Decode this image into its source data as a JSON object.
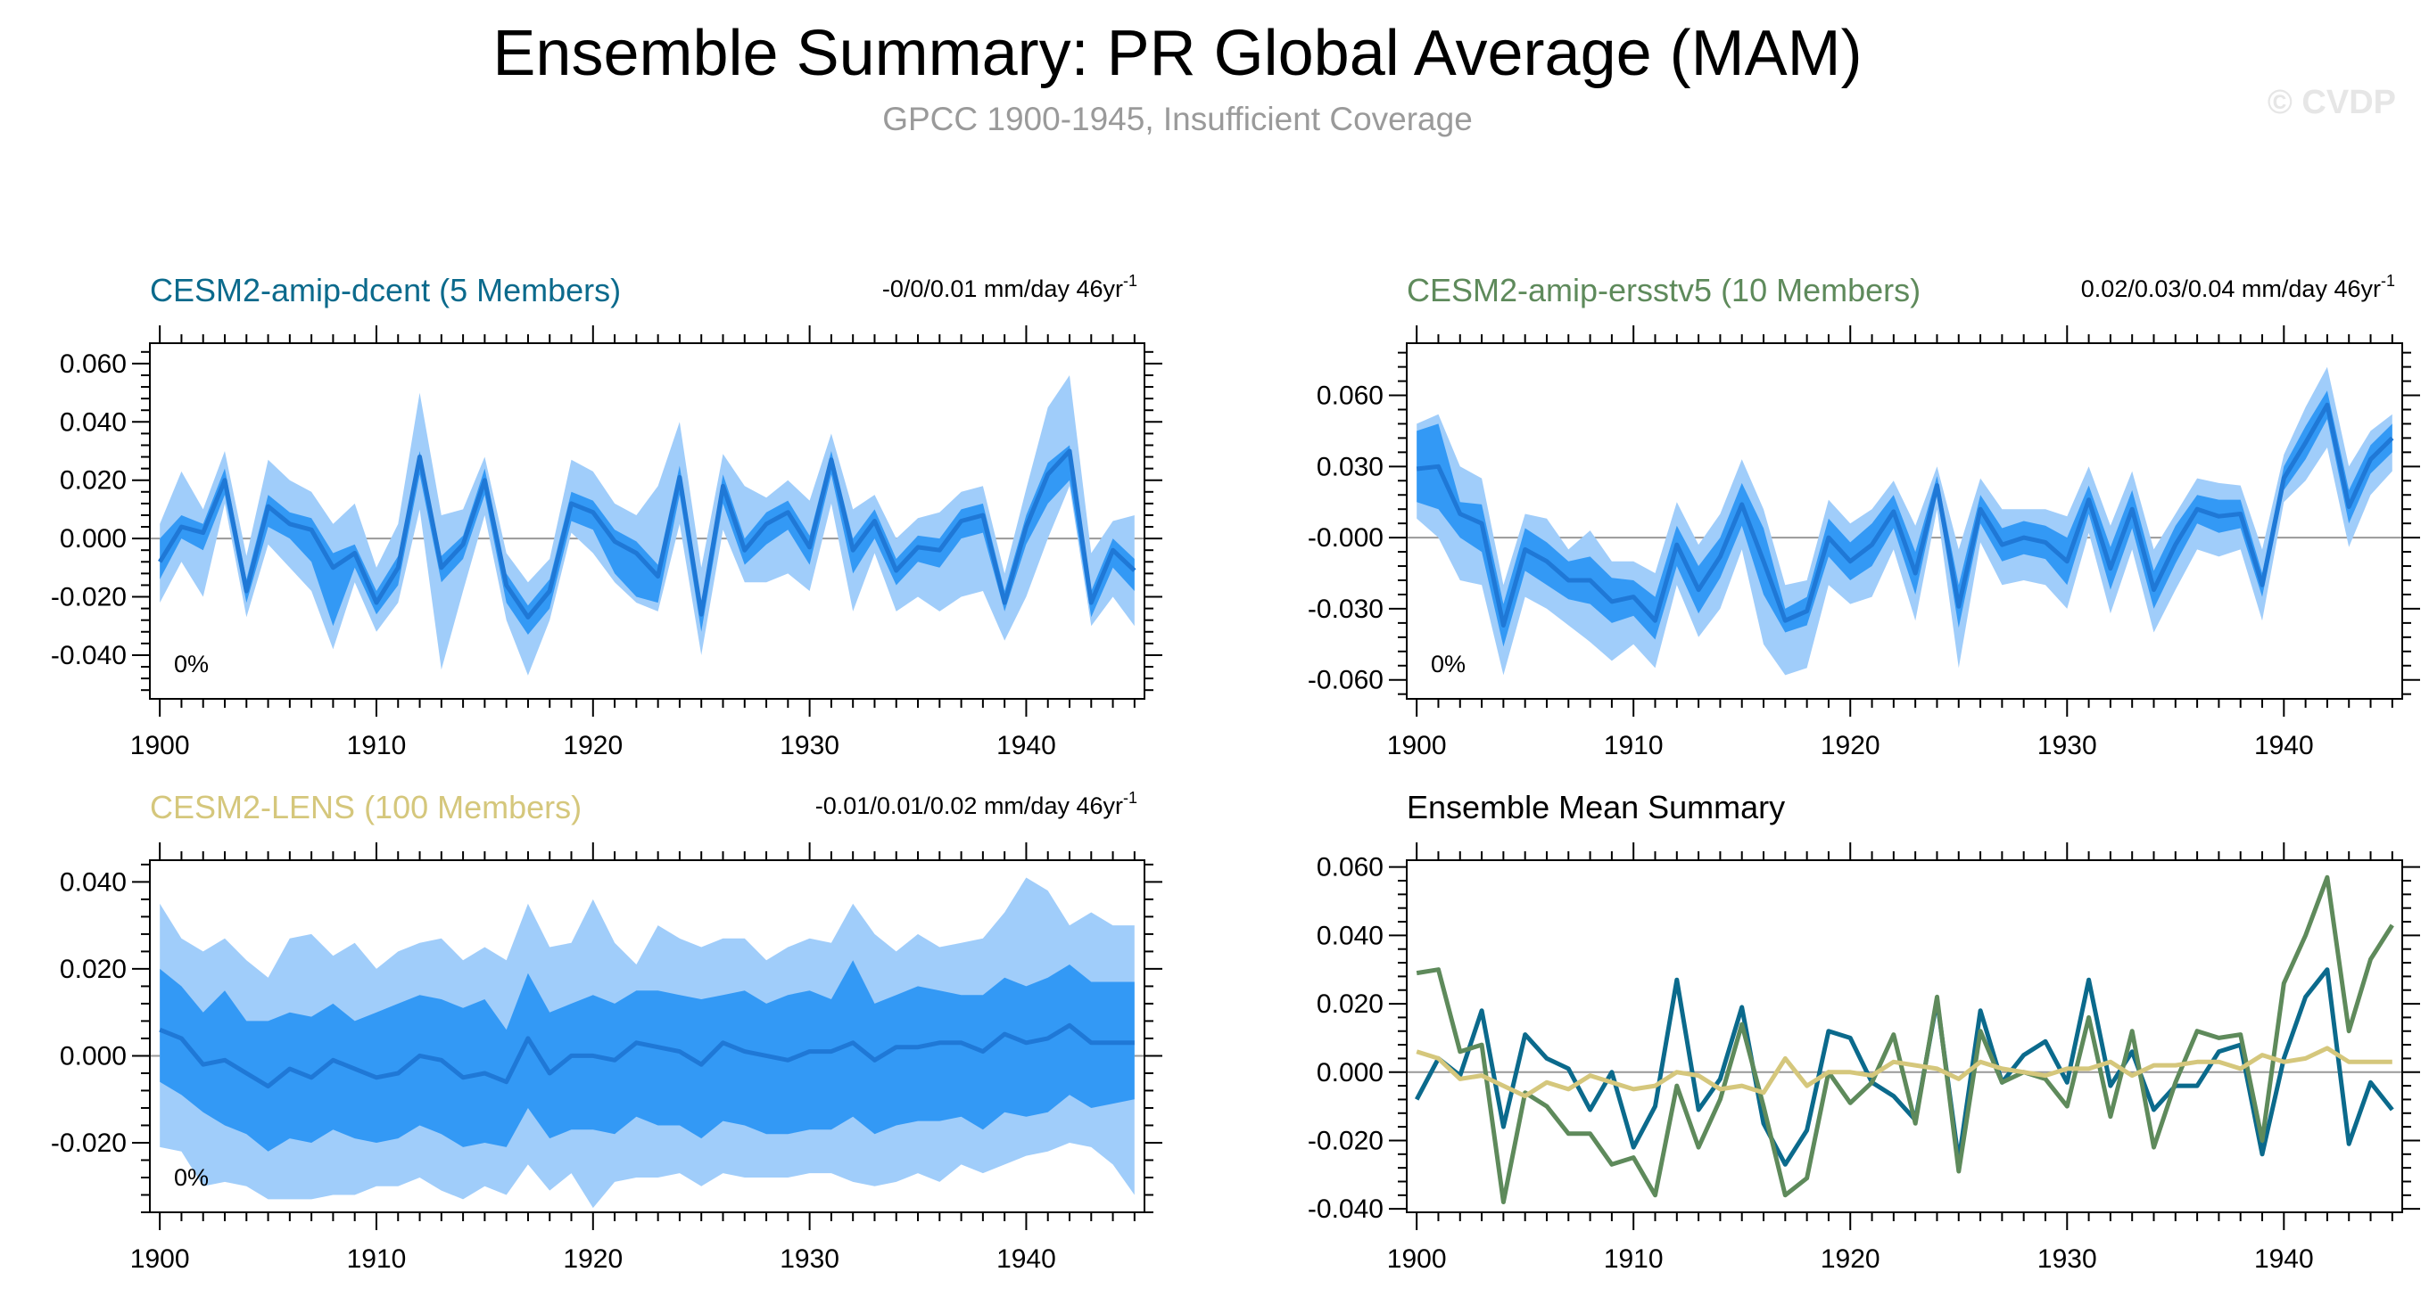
{
  "title": "Ensemble Summary: PR Global Average (MAM)",
  "subtitle": "GPCC 1900-1945, Insufficient Coverage",
  "watermark": "© CVDP",
  "colors": {
    "band_outer": "#a0cdfa",
    "band_inner": "#3399f5",
    "median_line": "#1f78d6",
    "zero_line": "#999999",
    "title_text": "#000000",
    "subtitle_text": "#9a9a9a",
    "watermark_text": "#e6e6e6"
  },
  "chart_data": [
    {
      "type": "area",
      "title": "CESM2-amip-dcent (5 Members)",
      "title_color": "#0b6a8c",
      "trend": "-0/0/0.01 mm/day 46yr",
      "trend_exp": "-1",
      "percent_label": "0%",
      "xlim": [
        1900,
        1945
      ],
      "ylim": [
        -0.055,
        0.067
      ],
      "x_ticks": [
        1900,
        1910,
        1920,
        1930,
        1940
      ],
      "x_tick_labels": [
        "1900",
        "1910",
        "1920",
        "1930",
        "1940"
      ],
      "y_ticks": [
        -0.04,
        -0.02,
        0,
        0.02,
        0.04,
        0.06
      ],
      "y_tick_labels": [
        "-0.040",
        "-0.020",
        "0.000",
        "0.020",
        "0.040",
        "0.060"
      ],
      "x": [
        1900,
        1901,
        1902,
        1903,
        1904,
        1905,
        1906,
        1907,
        1908,
        1909,
        1910,
        1911,
        1912,
        1913,
        1914,
        1915,
        1916,
        1917,
        1918,
        1919,
        1920,
        1921,
        1922,
        1923,
        1924,
        1925,
        1926,
        1927,
        1928,
        1929,
        1930,
        1931,
        1932,
        1933,
        1934,
        1935,
        1936,
        1937,
        1938,
        1939,
        1940,
        1941,
        1942,
        1943,
        1944,
        1945
      ],
      "median": [
        -0.008,
        0.004,
        0.002,
        0.02,
        -0.018,
        0.011,
        0.005,
        0.003,
        -0.01,
        -0.005,
        -0.022,
        -0.01,
        0.028,
        -0.01,
        -0.002,
        0.02,
        -0.016,
        -0.027,
        -0.018,
        0.012,
        0.009,
        -0.001,
        -0.005,
        -0.013,
        0.021,
        -0.026,
        0.018,
        -0.004,
        0.005,
        0.009,
        -0.003,
        0.027,
        -0.004,
        0.006,
        -0.011,
        -0.003,
        -0.004,
        0.006,
        0.008,
        -0.022,
        0.004,
        0.022,
        0.03,
        -0.022,
        -0.004,
        -0.011
      ],
      "inner_upper": [
        0,
        0.008,
        0.005,
        0.024,
        -0.014,
        0.015,
        0.009,
        0.007,
        -0.005,
        -0.002,
        -0.018,
        -0.006,
        0.03,
        -0.006,
        0.001,
        0.024,
        -0.012,
        -0.023,
        -0.014,
        0.016,
        0.013,
        0.003,
        -0.001,
        -0.009,
        0.025,
        -0.022,
        0.022,
        0,
        0.009,
        0.013,
        0.001,
        0.03,
        0,
        0.01,
        -0.007,
        0.001,
        0,
        0.01,
        0.012,
        -0.018,
        0.008,
        0.026,
        0.032,
        -0.018,
        0,
        -0.007
      ],
      "inner_lower": [
        -0.014,
        0,
        -0.004,
        0.015,
        -0.022,
        0.004,
        0,
        -0.008,
        -0.03,
        -0.01,
        -0.026,
        -0.016,
        0.022,
        -0.015,
        -0.007,
        0.015,
        -0.022,
        -0.033,
        -0.024,
        0.006,
        0.003,
        -0.012,
        -0.02,
        -0.022,
        0.015,
        -0.032,
        0.012,
        -0.009,
        -0.002,
        0.003,
        -0.009,
        0.022,
        -0.012,
        0,
        -0.016,
        -0.008,
        -0.01,
        0,
        0.002,
        -0.025,
        -0.002,
        0.012,
        0.02,
        -0.027,
        -0.01,
        -0.018
      ],
      "outer_upper": [
        0.005,
        0.023,
        0.01,
        0.03,
        -0.006,
        0.027,
        0.02,
        0.016,
        0.005,
        0.012,
        -0.01,
        0.005,
        0.05,
        0.008,
        0.01,
        0.028,
        -0.005,
        -0.015,
        -0.007,
        0.027,
        0.023,
        0.012,
        0.008,
        0.018,
        0.04,
        -0.01,
        0.029,
        0.018,
        0.014,
        0.02,
        0.013,
        0.036,
        0.01,
        0.015,
        0,
        0.007,
        0.009,
        0.016,
        0.018,
        -0.012,
        0.017,
        0.045,
        0.056,
        -0.005,
        0.006,
        0.008
      ],
      "outer_lower": [
        -0.022,
        -0.008,
        -0.02,
        0.012,
        -0.027,
        -0.002,
        -0.01,
        -0.018,
        -0.038,
        -0.015,
        -0.032,
        -0.022,
        0.01,
        -0.045,
        -0.018,
        0.008,
        -0.028,
        -0.047,
        -0.028,
        0.002,
        -0.005,
        -0.015,
        -0.022,
        -0.025,
        0.005,
        -0.04,
        0.003,
        -0.015,
        -0.015,
        -0.012,
        -0.018,
        0.012,
        -0.025,
        -0.005,
        -0.025,
        -0.02,
        -0.025,
        -0.02,
        -0.018,
        -0.035,
        -0.02,
        0,
        0.018,
        -0.03,
        -0.02,
        -0.03
      ]
    },
    {
      "type": "area",
      "title": "CESM2-amip-ersstv5 (10 Members)",
      "title_color": "#5e8a5b",
      "trend": "0.02/0.03/0.04 mm/day 46yr",
      "trend_exp": "-1",
      "percent_label": "0%",
      "xlim": [
        1900,
        1945
      ],
      "ylim": [
        -0.068,
        0.082
      ],
      "x_ticks": [
        1900,
        1910,
        1920,
        1930,
        1940
      ],
      "x_tick_labels": [
        "1900",
        "1910",
        "1920",
        "1930",
        "1940"
      ],
      "y_ticks": [
        -0.06,
        -0.03,
        0,
        0.03,
        0.06
      ],
      "y_tick_labels": [
        "-0.060",
        "-0.030",
        "-0.000",
        "0.030",
        "0.060"
      ],
      "x": [
        1900,
        1901,
        1902,
        1903,
        1904,
        1905,
        1906,
        1907,
        1908,
        1909,
        1910,
        1911,
        1912,
        1913,
        1914,
        1915,
        1916,
        1917,
        1918,
        1919,
        1920,
        1921,
        1922,
        1923,
        1924,
        1925,
        1926,
        1927,
        1928,
        1929,
        1930,
        1931,
        1932,
        1933,
        1934,
        1935,
        1936,
        1937,
        1938,
        1939,
        1940,
        1941,
        1942,
        1943,
        1944,
        1945
      ],
      "median": [
        0.029,
        0.03,
        0.01,
        0.006,
        -0.037,
        -0.005,
        -0.01,
        -0.018,
        -0.018,
        -0.027,
        -0.025,
        -0.035,
        -0.003,
        -0.022,
        -0.008,
        0.014,
        -0.01,
        -0.035,
        -0.031,
        0,
        -0.01,
        -0.003,
        0.011,
        -0.015,
        0.022,
        -0.029,
        0.012,
        -0.003,
        0,
        -0.002,
        -0.01,
        0.016,
        -0.013,
        0.012,
        -0.022,
        -0.003,
        0.012,
        0.009,
        0.01,
        -0.02,
        0.025,
        0.04,
        0.056,
        0.013,
        0.033,
        0.042
      ],
      "inner_upper": [
        0.045,
        0.048,
        0.015,
        0.014,
        -0.028,
        0.004,
        -0.002,
        -0.01,
        -0.008,
        -0.017,
        -0.018,
        -0.025,
        0.005,
        -0.012,
        0,
        0.023,
        0.004,
        -0.03,
        -0.025,
        0.008,
        -0.002,
        0.006,
        0.018,
        -0.006,
        0.026,
        -0.02,
        0.018,
        0.004,
        0.007,
        0.005,
        0,
        0.022,
        -0.004,
        0.02,
        -0.014,
        0.005,
        0.018,
        0.016,
        0.016,
        -0.015,
        0.03,
        0.047,
        0.062,
        0.02,
        0.039,
        0.048
      ],
      "inner_lower": [
        0.015,
        0.012,
        0,
        -0.006,
        -0.046,
        -0.014,
        -0.02,
        -0.026,
        -0.028,
        -0.036,
        -0.033,
        -0.043,
        -0.012,
        -0.032,
        -0.017,
        0.005,
        -0.024,
        -0.04,
        -0.037,
        -0.008,
        -0.018,
        -0.012,
        0.004,
        -0.024,
        0.018,
        -0.038,
        0.006,
        -0.01,
        -0.007,
        -0.009,
        -0.02,
        0.01,
        -0.022,
        0.004,
        -0.03,
        -0.011,
        0.006,
        0.002,
        0.004,
        -0.025,
        0.02,
        0.033,
        0.05,
        0.006,
        0.027,
        0.036
      ],
      "outer_upper": [
        0.048,
        0.052,
        0.03,
        0.025,
        -0.02,
        0.01,
        0.008,
        -0.005,
        0.003,
        -0.01,
        -0.01,
        -0.015,
        0.015,
        -0.003,
        0.01,
        0.033,
        0.012,
        -0.02,
        -0.018,
        0.016,
        0.006,
        0.012,
        0.024,
        0.005,
        0.03,
        -0.005,
        0.025,
        0.012,
        0.012,
        0.012,
        0.009,
        0.03,
        0.005,
        0.028,
        -0.005,
        0.01,
        0.025,
        0.023,
        0.022,
        -0.005,
        0.035,
        0.055,
        0.072,
        0.03,
        0.045,
        0.052
      ],
      "outer_lower": [
        0.008,
        0,
        -0.018,
        -0.02,
        -0.058,
        -0.025,
        -0.03,
        -0.037,
        -0.044,
        -0.052,
        -0.045,
        -0.055,
        -0.02,
        -0.042,
        -0.03,
        -0.005,
        -0.045,
        -0.058,
        -0.055,
        -0.02,
        -0.028,
        -0.025,
        -0.005,
        -0.035,
        0.012,
        -0.055,
        -0.002,
        -0.02,
        -0.018,
        -0.02,
        -0.03,
        0.002,
        -0.032,
        -0.005,
        -0.04,
        -0.022,
        -0.005,
        -0.008,
        -0.005,
        -0.035,
        0.015,
        0.024,
        0.038,
        -0.004,
        0.018,
        0.028
      ]
    },
    {
      "type": "area",
      "title": "CESM2-LENS (100 Members)",
      "title_color": "#d5c77c",
      "trend": "-0.01/0.01/0.02 mm/day 46yr",
      "trend_exp": "-1",
      "percent_label": "0%",
      "xlim": [
        1900,
        1945
      ],
      "ylim": [
        -0.036,
        0.045
      ],
      "x_ticks": [
        1900,
        1910,
        1920,
        1930,
        1940
      ],
      "x_tick_labels": [
        "1900",
        "1910",
        "1920",
        "1930",
        "1940"
      ],
      "y_ticks": [
        -0.02,
        0,
        0.02,
        0.04
      ],
      "y_tick_labels": [
        "-0.020",
        "0.000",
        "0.020",
        "0.040"
      ],
      "x": [
        1900,
        1901,
        1902,
        1903,
        1904,
        1905,
        1906,
        1907,
        1908,
        1909,
        1910,
        1911,
        1912,
        1913,
        1914,
        1915,
        1916,
        1917,
        1918,
        1919,
        1920,
        1921,
        1922,
        1923,
        1924,
        1925,
        1926,
        1927,
        1928,
        1929,
        1930,
        1931,
        1932,
        1933,
        1934,
        1935,
        1936,
        1937,
        1938,
        1939,
        1940,
        1941,
        1942,
        1943,
        1944,
        1945
      ],
      "median": [
        0.006,
        0.004,
        -0.002,
        -0.001,
        -0.004,
        -0.007,
        -0.003,
        -0.005,
        -0.001,
        -0.003,
        -0.005,
        -0.004,
        0,
        -0.001,
        -0.005,
        -0.004,
        -0.006,
        0.004,
        -0.004,
        0,
        0,
        -0.001,
        0.003,
        0.002,
        0.001,
        -0.002,
        0.003,
        0.001,
        0,
        -0.001,
        0.001,
        0.001,
        0.003,
        -0.001,
        0.002,
        0.002,
        0.003,
        0.003,
        0.001,
        0.005,
        0.003,
        0.004,
        0.007,
        0.003,
        0.003,
        0.003
      ],
      "inner_upper": [
        0.02,
        0.016,
        0.01,
        0.015,
        0.008,
        0.008,
        0.01,
        0.009,
        0.012,
        0.008,
        0.01,
        0.012,
        0.014,
        0.013,
        0.011,
        0.013,
        0.006,
        0.019,
        0.01,
        0.012,
        0.014,
        0.012,
        0.015,
        0.015,
        0.014,
        0.013,
        0.014,
        0.015,
        0.012,
        0.014,
        0.015,
        0.013,
        0.022,
        0.012,
        0.014,
        0.016,
        0.015,
        0.014,
        0.014,
        0.018,
        0.016,
        0.018,
        0.021,
        0.017,
        0.017,
        0.017
      ],
      "inner_lower": [
        -0.006,
        -0.009,
        -0.013,
        -0.016,
        -0.018,
        -0.022,
        -0.019,
        -0.02,
        -0.017,
        -0.019,
        -0.02,
        -0.019,
        -0.016,
        -0.018,
        -0.021,
        -0.02,
        -0.021,
        -0.012,
        -0.019,
        -0.017,
        -0.017,
        -0.018,
        -0.014,
        -0.016,
        -0.016,
        -0.019,
        -0.015,
        -0.016,
        -0.018,
        -0.018,
        -0.017,
        -0.017,
        -0.014,
        -0.018,
        -0.016,
        -0.015,
        -0.015,
        -0.014,
        -0.017,
        -0.013,
        -0.014,
        -0.013,
        -0.009,
        -0.012,
        -0.011,
        -0.01
      ],
      "outer_upper": [
        0.035,
        0.027,
        0.024,
        0.027,
        0.022,
        0.018,
        0.027,
        0.028,
        0.023,
        0.026,
        0.02,
        0.024,
        0.026,
        0.027,
        0.022,
        0.025,
        0.022,
        0.035,
        0.025,
        0.026,
        0.036,
        0.026,
        0.021,
        0.03,
        0.027,
        0.025,
        0.027,
        0.027,
        0.022,
        0.025,
        0.027,
        0.026,
        0.035,
        0.028,
        0.024,
        0.028,
        0.025,
        0.026,
        0.027,
        0.033,
        0.041,
        0.038,
        0.03,
        0.033,
        0.03,
        0.03
      ],
      "outer_lower": [
        -0.021,
        -0.022,
        -0.03,
        -0.029,
        -0.03,
        -0.033,
        -0.033,
        -0.033,
        -0.032,
        -0.032,
        -0.03,
        -0.03,
        -0.028,
        -0.031,
        -0.033,
        -0.03,
        -0.032,
        -0.025,
        -0.031,
        -0.027,
        -0.035,
        -0.029,
        -0.028,
        -0.028,
        -0.027,
        -0.03,
        -0.027,
        -0.028,
        -0.028,
        -0.028,
        -0.027,
        -0.027,
        -0.029,
        -0.03,
        -0.029,
        -0.027,
        -0.029,
        -0.025,
        -0.027,
        -0.025,
        -0.023,
        -0.022,
        -0.02,
        -0.021,
        -0.025,
        -0.032
      ]
    },
    {
      "type": "line",
      "title": "Ensemble Mean Summary",
      "title_color": "#000000",
      "xlim": [
        1900,
        1945
      ],
      "ylim": [
        -0.041,
        0.062
      ],
      "x_ticks": [
        1900,
        1910,
        1920,
        1930,
        1940
      ],
      "x_tick_labels": [
        "1900",
        "1910",
        "1920",
        "1930",
        "1940"
      ],
      "y_ticks": [
        -0.04,
        -0.02,
        0,
        0.02,
        0.04,
        0.06
      ],
      "y_tick_labels": [
        "-0.040",
        "-0.020",
        "0.000",
        "0.020",
        "0.040",
        "0.060"
      ],
      "x": [
        1900,
        1901,
        1902,
        1903,
        1904,
        1905,
        1906,
        1907,
        1908,
        1909,
        1910,
        1911,
        1912,
        1913,
        1914,
        1915,
        1916,
        1917,
        1918,
        1919,
        1920,
        1921,
        1922,
        1923,
        1924,
        1925,
        1926,
        1927,
        1928,
        1929,
        1930,
        1931,
        1932,
        1933,
        1934,
        1935,
        1936,
        1937,
        1938,
        1939,
        1940,
        1941,
        1942,
        1943,
        1944,
        1945
      ],
      "series": [
        {
          "name": "CESM2-amip-dcent",
          "color": "#0b6a8c",
          "values": [
            -0.008,
            0.004,
            -0.001,
            0.018,
            -0.016,
            0.011,
            0.004,
            0.001,
            -0.011,
            0,
            -0.022,
            -0.01,
            0.027,
            -0.011,
            -0.002,
            0.019,
            -0.015,
            -0.027,
            -0.017,
            0.012,
            0.01,
            -0.003,
            -0.007,
            -0.014,
            0.021,
            -0.026,
            0.018,
            -0.003,
            0.005,
            0.009,
            -0.003,
            0.027,
            -0.004,
            0.006,
            -0.011,
            -0.004,
            -0.004,
            0.006,
            0.008,
            -0.024,
            0.004,
            0.022,
            0.03,
            -0.021,
            -0.003,
            -0.011
          ]
        },
        {
          "name": "CESM2-amip-ersstv5",
          "color": "#5e8a5b",
          "values": [
            0.029,
            0.03,
            0.006,
            0.008,
            -0.038,
            -0.006,
            -0.01,
            -0.018,
            -0.018,
            -0.027,
            -0.025,
            -0.036,
            -0.004,
            -0.022,
            -0.008,
            0.014,
            -0.01,
            -0.036,
            -0.031,
            0,
            -0.009,
            -0.003,
            0.011,
            -0.015,
            0.022,
            -0.029,
            0.012,
            -0.003,
            0,
            -0.002,
            -0.01,
            0.016,
            -0.013,
            0.012,
            -0.022,
            -0.003,
            0.012,
            0.01,
            0.011,
            -0.02,
            0.026,
            0.04,
            0.057,
            0.012,
            0.033,
            0.043
          ]
        },
        {
          "name": "CESM2-LENS",
          "color": "#d5c77c",
          "values": [
            0.006,
            0.004,
            -0.002,
            -0.001,
            -0.004,
            -0.007,
            -0.003,
            -0.005,
            -0.001,
            -0.003,
            -0.005,
            -0.004,
            0,
            -0.001,
            -0.005,
            -0.004,
            -0.006,
            0.004,
            -0.004,
            0,
            0,
            -0.001,
            0.003,
            0.002,
            0.001,
            -0.002,
            0.003,
            0.001,
            0,
            -0.001,
            0.001,
            0.001,
            0.003,
            -0.001,
            0.002,
            0.002,
            0.003,
            0.003,
            0.001,
            0.005,
            0.003,
            0.004,
            0.007,
            0.003,
            0.003,
            0.003
          ]
        }
      ]
    }
  ]
}
